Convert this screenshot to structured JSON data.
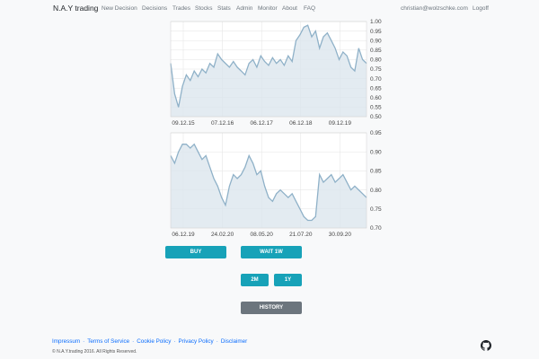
{
  "nav": {
    "brand": "N.A.Y trading",
    "items": [
      "New Decision",
      "Decisions",
      "Trades",
      "Stocks",
      "Stats",
      "Admin",
      "Monitor",
      "About",
      "FAQ"
    ],
    "email": "christian@wolzschke.com",
    "logout": "Logoff"
  },
  "chart_data": [
    {
      "type": "area",
      "ylim": [
        0.5,
        1.0
      ],
      "yticks": [
        "1.00",
        "0.95",
        "0.90",
        "0.85",
        "0.80",
        "0.75",
        "0.70",
        "0.65",
        "0.60",
        "0.55",
        "0.50"
      ],
      "xtick_labels": [
        "09.12.15",
        "07.12.16",
        "06.12.17",
        "06.12.18",
        "09.12.19"
      ],
      "x": [
        0,
        2,
        4,
        6,
        8,
        10,
        12,
        14,
        16,
        18,
        20,
        22,
        24,
        26,
        28,
        30,
        32,
        34,
        36,
        38,
        40,
        42,
        44,
        46,
        48,
        50,
        52,
        54,
        56,
        58,
        60,
        62,
        64,
        66,
        68,
        70,
        72,
        74,
        76,
        78,
        80,
        82,
        84,
        86,
        88,
        90,
        92,
        94,
        96,
        98,
        100
      ],
      "values": [
        0.78,
        0.62,
        0.55,
        0.66,
        0.72,
        0.69,
        0.74,
        0.71,
        0.75,
        0.73,
        0.78,
        0.76,
        0.83,
        0.8,
        0.78,
        0.76,
        0.79,
        0.76,
        0.74,
        0.72,
        0.78,
        0.8,
        0.76,
        0.82,
        0.79,
        0.77,
        0.81,
        0.78,
        0.8,
        0.77,
        0.82,
        0.79,
        0.9,
        0.93,
        0.97,
        0.98,
        0.92,
        0.95,
        0.86,
        0.92,
        0.94,
        0.9,
        0.86,
        0.8,
        0.84,
        0.82,
        0.76,
        0.74,
        0.86,
        0.8,
        0.78
      ]
    },
    {
      "type": "area",
      "ylim": [
        0.7,
        0.95
      ],
      "yticks": [
        "0.95",
        "0.90",
        "0.85",
        "0.80",
        "0.75",
        "0.70"
      ],
      "xtick_labels": [
        "06.12.19",
        "24.02.20",
        "08.05.20",
        "21.07.20",
        "30.09.20"
      ],
      "x": [
        0,
        2,
        4,
        6,
        8,
        10,
        12,
        14,
        16,
        18,
        20,
        22,
        24,
        26,
        28,
        30,
        32,
        34,
        36,
        38,
        40,
        42,
        44,
        46,
        48,
        50,
        52,
        54,
        56,
        58,
        60,
        62,
        64,
        66,
        68,
        70,
        72,
        74,
        76,
        78,
        80,
        82,
        84,
        86,
        88,
        90,
        92,
        94,
        96,
        98,
        100
      ],
      "values": [
        0.89,
        0.87,
        0.9,
        0.92,
        0.92,
        0.91,
        0.92,
        0.9,
        0.88,
        0.89,
        0.86,
        0.83,
        0.81,
        0.78,
        0.76,
        0.81,
        0.84,
        0.83,
        0.84,
        0.86,
        0.89,
        0.87,
        0.84,
        0.85,
        0.81,
        0.78,
        0.77,
        0.79,
        0.8,
        0.79,
        0.78,
        0.79,
        0.77,
        0.75,
        0.73,
        0.72,
        0.72,
        0.73,
        0.84,
        0.82,
        0.83,
        0.84,
        0.82,
        0.83,
        0.84,
        0.82,
        0.8,
        0.81,
        0.8,
        0.79,
        0.78
      ]
    }
  ],
  "buttons": {
    "buy": "BUY",
    "wait": "WAIT 1W",
    "two_months": "2M",
    "one_year": "1Y",
    "history": "HISTORY"
  },
  "footer": {
    "links": [
      "Impressum",
      "Terms of Service",
      "Cookie Policy",
      "Privacy Policy",
      "Disclaimer"
    ],
    "copyright": "© N.A.Y.trading 2016. All Rights Reserved.",
    "github_icon": "github-icon"
  },
  "colors": {
    "line": "#8fb1c8",
    "fill": "#dce6ee",
    "btn_info": "#17a2b8",
    "btn_secondary": "#6c757d",
    "link": "#0d6efd"
  }
}
